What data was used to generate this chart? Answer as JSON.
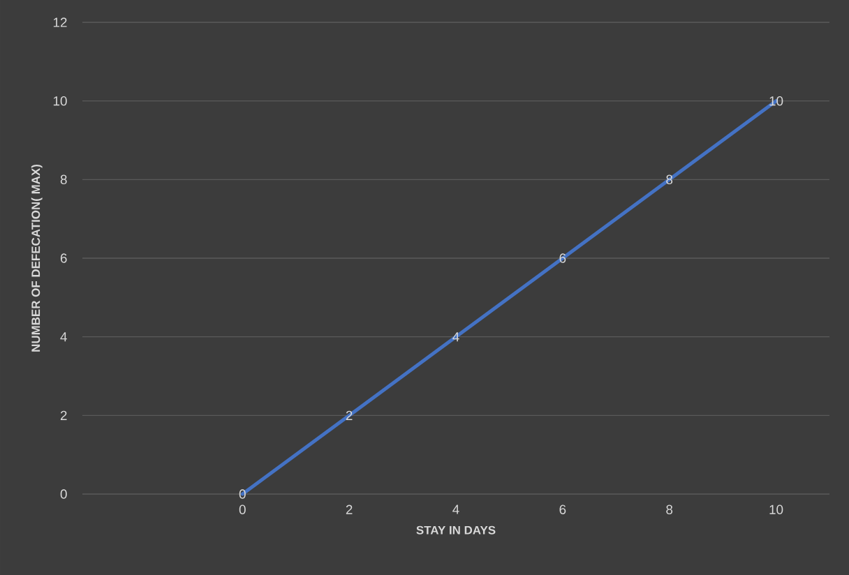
{
  "chart_data": {
    "type": "line",
    "xlabel": "STAY IN DAYS",
    "ylabel": "NUMBER OF DEFECATION( MAX)",
    "categories": [
      null,
      "0",
      "2",
      "4",
      "6",
      "8",
      "10"
    ],
    "series": [
      {
        "color": "#4472c4",
        "values": [
          null,
          0,
          2,
          4,
          6,
          8,
          10
        ]
      }
    ],
    "ylim": [
      0,
      12
    ],
    "yticks": [
      0,
      2,
      4,
      6,
      8,
      10,
      12
    ],
    "grid": "y",
    "data_labels": true,
    "marker": "none",
    "line_style": "solid"
  }
}
